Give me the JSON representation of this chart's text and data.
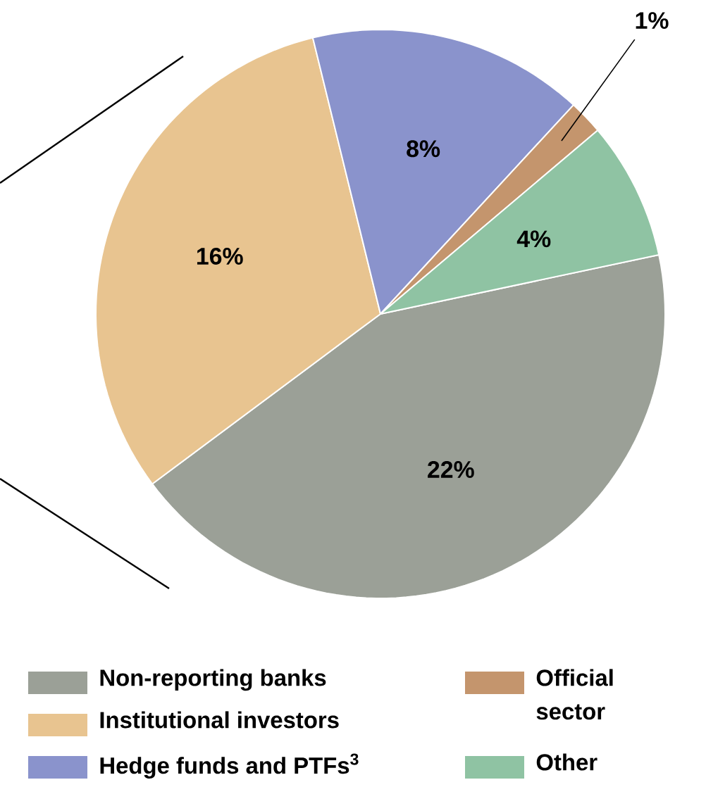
{
  "chart_data": {
    "type": "pie",
    "categories": [
      "Non-reporting banks",
      "Institutional investors",
      "Hedge funds and PTFs$^{3}$",
      "Official sector",
      "Other"
    ],
    "values": [
      22,
      16,
      8,
      1,
      4
    ],
    "colors": [
      "#9ba097",
      "#e8c490",
      "#8a93cc",
      "#c4956d",
      "#8fc3a3"
    ],
    "value_labels": [
      "22%",
      "16%",
      "8%",
      "1%",
      "4%"
    ],
    "legend": "bottom"
  }
}
